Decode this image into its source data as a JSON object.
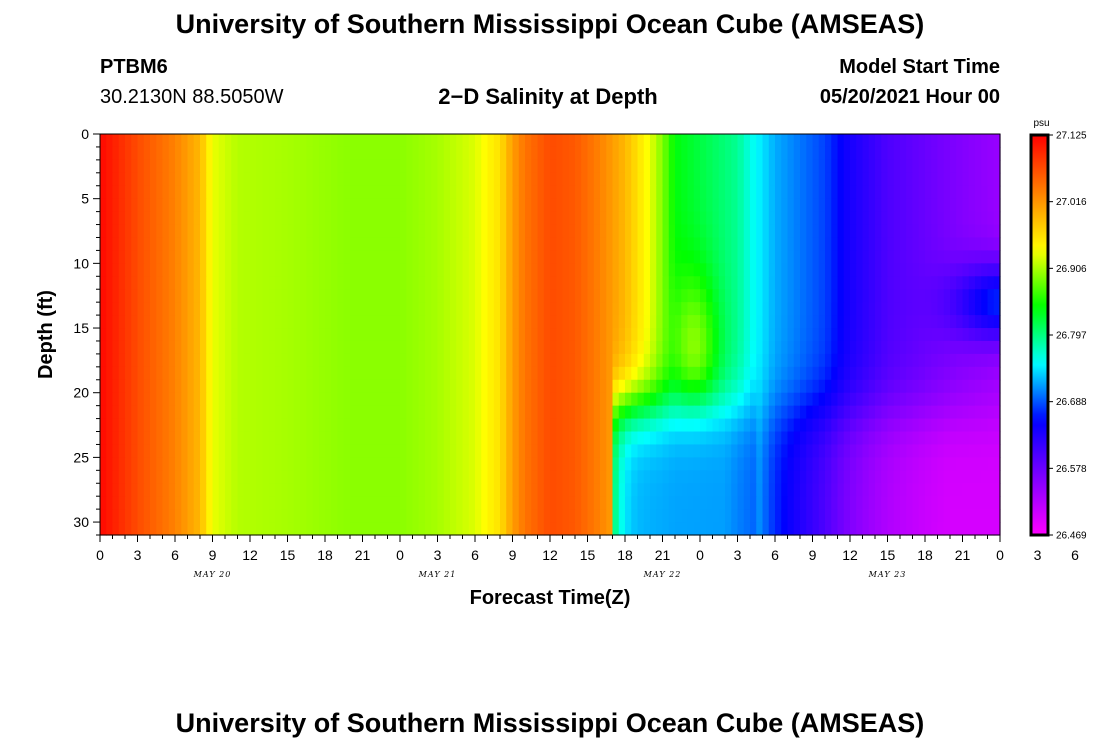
{
  "header": {
    "title": "University of Southern Mississippi Ocean Cube (AMSEAS)",
    "station_id": "PTBM6",
    "station_coords": "30.2130N  88.5050W",
    "subtitle": "2−D Salinity at Depth",
    "model_start_label": "Model Start Time",
    "model_start_value": "05/20/2021 Hour 00"
  },
  "footer": {
    "title": "University of Southern Mississippi Ocean Cube (AMSEAS)"
  },
  "chart_data": {
    "type": "heatmap",
    "xlabel": "Forecast Time(Z)",
    "ylabel": "Depth (ft)",
    "x_range_hours": [
      0,
      72
    ],
    "x_tick_step_hours": 3,
    "x_tick_labels": [
      "0",
      "3",
      "6",
      "9",
      "12",
      "15",
      "18",
      "21",
      "0",
      "3",
      "6",
      "9",
      "12",
      "15",
      "18",
      "21",
      "0",
      "3",
      "6",
      "9",
      "12",
      "15",
      "18",
      "21",
      "0",
      "3",
      "6",
      "9",
      "12",
      "15",
      "18",
      "21",
      "0"
    ],
    "date_labels": [
      {
        "label": "MAY 20",
        "hour": 9
      },
      {
        "label": "MAY 21",
        "hour": 27
      },
      {
        "label": "MAY 22",
        "hour": 45
      },
      {
        "label": "MAY 23",
        "hour": 63
      }
    ],
    "y_range": [
      0,
      31
    ],
    "y_inverted": true,
    "y_ticks": [
      0,
      5,
      10,
      15,
      20,
      25,
      30
    ],
    "colorbar": {
      "unit": "psu",
      "min": 26.469,
      "max": 27.125,
      "tick_labels": [
        "27.125",
        "27.016",
        "26.906",
        "26.797",
        "26.688",
        "26.578",
        "26.469"
      ],
      "colors": [
        "#ff00ff",
        "#8000ff",
        "#0000ff",
        "#00ffff",
        "#00ff00",
        "#ffff00",
        "#ff8000",
        "#ff0000"
      ]
    },
    "surface_salinity_psu": [
      [
        0,
        27.12
      ],
      [
        3,
        27.07
      ],
      [
        6,
        27.03
      ],
      [
        7,
        27.01
      ],
      [
        8,
        26.99
      ],
      [
        9,
        26.93
      ],
      [
        11,
        26.91
      ],
      [
        15,
        26.905
      ],
      [
        20,
        26.895
      ],
      [
        24,
        26.895
      ],
      [
        27,
        26.905
      ],
      [
        30,
        26.925
      ],
      [
        32,
        26.96
      ],
      [
        33,
        27.01
      ],
      [
        34,
        27.04
      ],
      [
        36,
        27.07
      ],
      [
        38,
        27.06
      ],
      [
        40,
        27.03
      ],
      [
        42,
        26.99
      ],
      [
        44,
        26.93
      ],
      [
        45,
        26.89
      ],
      [
        46,
        26.84
      ],
      [
        48,
        26.82
      ],
      [
        49,
        26.81
      ],
      [
        50,
        26.8
      ],
      [
        51,
        26.79
      ],
      [
        52,
        26.76
      ],
      [
        54,
        26.72
      ],
      [
        56,
        26.7
      ],
      [
        58,
        26.68
      ],
      [
        60,
        26.64
      ],
      [
        63,
        26.6
      ],
      [
        66,
        26.58
      ],
      [
        69,
        26.56
      ],
      [
        72,
        26.545
      ]
    ],
    "features": [
      {
        "description": "mid-depth high",
        "hour": 47.5,
        "depth": 17,
        "salinity": 26.9
      },
      {
        "description": "deep low",
        "hours": [
          42.5,
          51
        ],
        "depth": 28,
        "salinity": 26.71
      },
      {
        "description": "deep freshening",
        "hours": [
          52,
          72
        ],
        "depth": 28,
        "salinity": 26.5
      },
      {
        "description": "mid-depth low",
        "hour": 72,
        "depth": 13,
        "salinity": 26.67
      }
    ]
  }
}
